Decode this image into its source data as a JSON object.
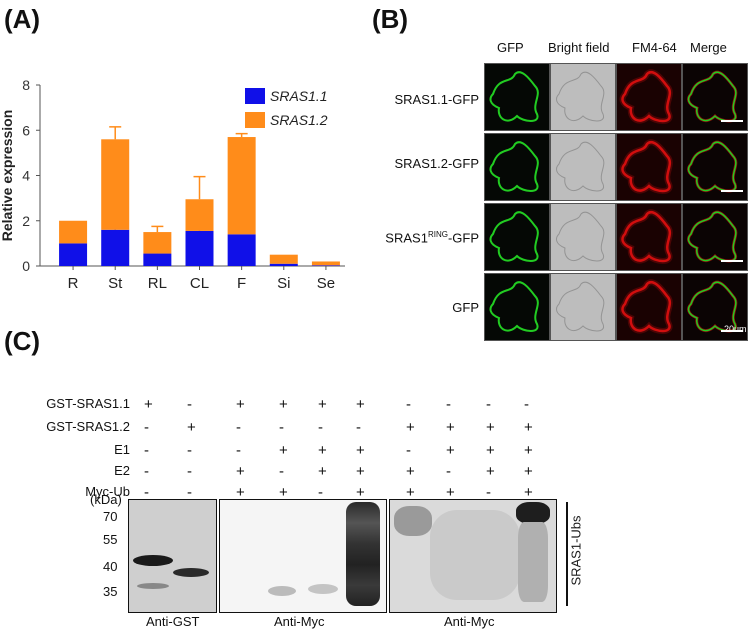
{
  "panel_a": {
    "letter": "(A)",
    "chart_data": {
      "type": "bar",
      "stacked": true,
      "categories": [
        "R",
        "St",
        "RL",
        "CL",
        "F",
        "Si",
        "Se"
      ],
      "ylabel": "Relative expression",
      "ylim": [
        0,
        8
      ],
      "yticks": [
        0,
        2,
        4,
        6,
        8
      ],
      "legend_position": "top-right",
      "series": [
        {
          "name": "SRAS1.1",
          "color": "#1010e8",
          "values": [
            1.0,
            1.6,
            0.55,
            1.55,
            1.4,
            0.1,
            0.03
          ],
          "errors": [
            0.0,
            0.3,
            0.1,
            0.85,
            0.0,
            0.0,
            0.0
          ]
        },
        {
          "name": "SRAS1.2",
          "color": "#ff8c1a",
          "values": [
            1.0,
            4.0,
            0.95,
            1.4,
            4.3,
            0.4,
            0.17
          ],
          "errors": [
            0.0,
            0.55,
            0.25,
            1.0,
            0.15,
            0.0,
            0.0
          ]
        }
      ]
    }
  },
  "panel_b": {
    "letter": "(B)",
    "columns": [
      "GFP",
      "Bright field",
      "FM4-64",
      "Merge"
    ],
    "rows": [
      {
        "label": "SRAS1.1-GFP"
      },
      {
        "label": "SRAS1.2-GFP"
      },
      {
        "label_main": "SRAS1",
        "label_sup": "RING",
        "label_tail": "-GFP"
      },
      {
        "label": "GFP"
      }
    ],
    "scale_label": "20um",
    "colors": {
      "gfp": "#22cc22",
      "fm": "#e01010",
      "bright": "#bdbdbd"
    }
  },
  "panel_c": {
    "letter": "(C)",
    "conditions": [
      {
        "label": "GST-SRAS1.1",
        "values": [
          "+",
          "-",
          "+",
          "+",
          "+",
          "+",
          "-",
          "-",
          "-",
          "-"
        ]
      },
      {
        "label": "GST-SRAS1.2",
        "values": [
          "-",
          "+",
          "-",
          "-",
          "-",
          "-",
          "+",
          "+",
          "+",
          "+"
        ]
      },
      {
        "label": "E1",
        "values": [
          "-",
          "-",
          "-",
          "+",
          "+",
          "+",
          "-",
          "+",
          "+",
          "+"
        ]
      },
      {
        "label": "E2",
        "values": [
          "-",
          "-",
          "+",
          "-",
          "+",
          "+",
          "+",
          "-",
          "+",
          "+"
        ]
      },
      {
        "label": "Myc-Ub",
        "values": [
          "-",
          "-",
          "+",
          "+",
          "-",
          "+",
          "+",
          "+",
          "-",
          "+"
        ]
      }
    ],
    "kda_label": "(kDa)",
    "markers": [
      "70",
      "55",
      "40",
      "35"
    ],
    "blot_labels": [
      "Anti-GST",
      "Anti-Myc",
      "Anti-Myc"
    ],
    "bracket_label": "SRAS1-Ubs"
  }
}
